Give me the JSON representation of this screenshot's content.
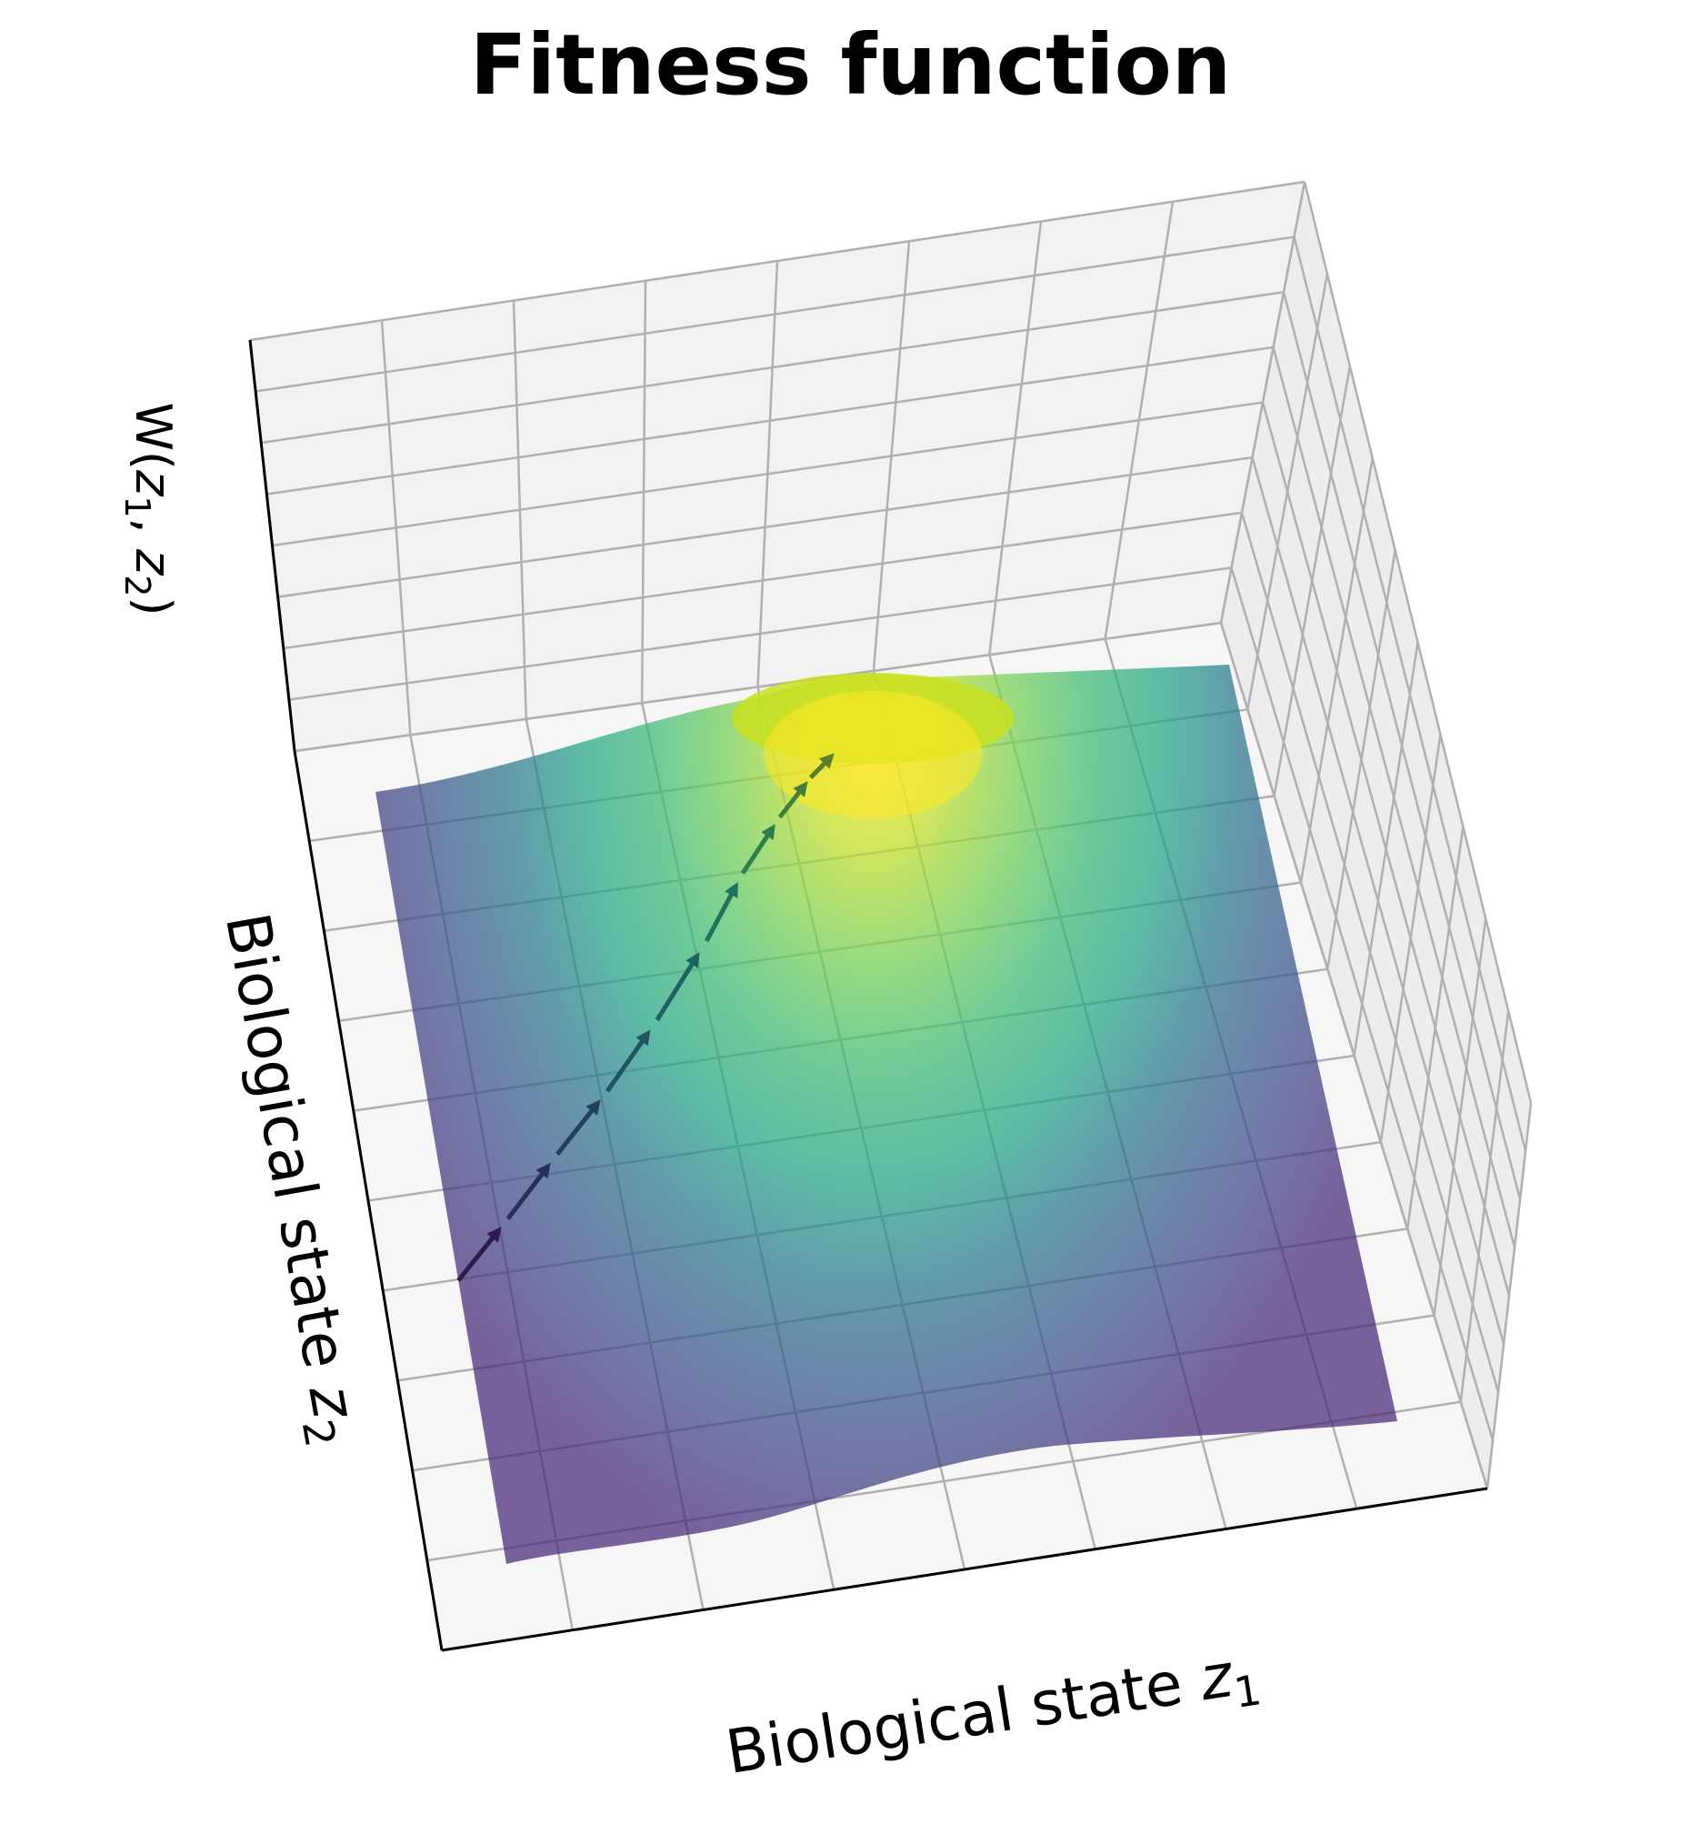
{
  "title": "Fitness function",
  "chart_data": {
    "type": "surface3d",
    "title": "Fitness function",
    "xlabel": "Biological state z₁",
    "ylabel": "Biological state z₂",
    "zlabel": "W(z₁, z₂)",
    "xlabel_parts": {
      "text": "Biological state ",
      "var": "z",
      "sub": "1"
    },
    "ylabel_parts": {
      "text": "Biological state ",
      "var": "z",
      "sub": "2"
    },
    "zlabel_parts": {
      "open": "W(",
      "var1": "z",
      "sub1": "1",
      "sep": ", ",
      "var2": "z",
      "sub2": "2",
      "close": ")"
    },
    "surface": {
      "function": "single Gaussian peak (fitness optimum)",
      "colormap": "viridis",
      "x_range": [
        -3,
        3
      ],
      "y_range": [
        -3,
        3
      ],
      "z_range": [
        0,
        1
      ],
      "peak": {
        "x": 0,
        "y": 2,
        "z": 1.0
      },
      "alpha": 0.7
    },
    "trajectory": {
      "style": "dashed arrows",
      "points": [
        {
          "x": -3.0,
          "y": -0.8
        },
        {
          "x": -2.6,
          "y": -0.4
        },
        {
          "x": -2.2,
          "y": 0.0
        },
        {
          "x": -1.8,
          "y": 0.35
        },
        {
          "x": -1.4,
          "y": 0.7
        },
        {
          "x": -1.0,
          "y": 1.05
        },
        {
          "x": -0.7,
          "y": 1.35
        },
        {
          "x": -0.4,
          "y": 1.6
        },
        {
          "x": -0.15,
          "y": 1.8
        },
        {
          "x": 0.05,
          "y": 1.95
        }
      ]
    },
    "grid": true,
    "tick_labels": false
  }
}
